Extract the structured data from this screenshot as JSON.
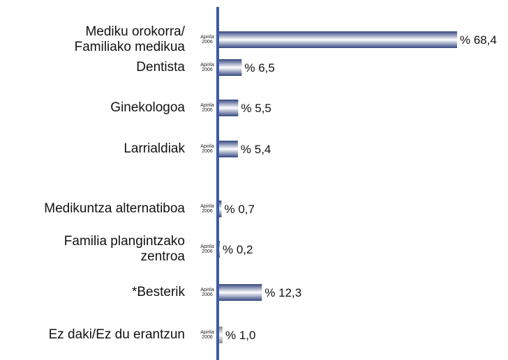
{
  "chart_data": {
    "type": "bar",
    "categories": [
      "Mediku orokorra/\nFamiliako medikua",
      "Dentista",
      "Ginekologoa",
      "Larrialdiak",
      "Medikuntza alternatiboa",
      "Familia plangintzako\nzentroa",
      "*Besterik",
      "Ez daki/Ez du erantzun"
    ],
    "period_label": [
      "Apirila",
      "2006"
    ],
    "values": [
      68.4,
      6.5,
      5.5,
      5.4,
      0.7,
      0.2,
      12.3,
      1.0
    ],
    "value_labels": [
      "% 68,4",
      "% 6,5",
      "% 5,5",
      "% 5,4",
      "% 0,7",
      "% 0,2",
      "% 12,3",
      "% 1,0"
    ],
    "colors": [
      "#34467f",
      "#34467f",
      "#34467f",
      "#34467f",
      "#34467f",
      "#34467f",
      "#34467f",
      "#8c8c8c"
    ],
    "axis_color": "#3b5ba5"
  }
}
